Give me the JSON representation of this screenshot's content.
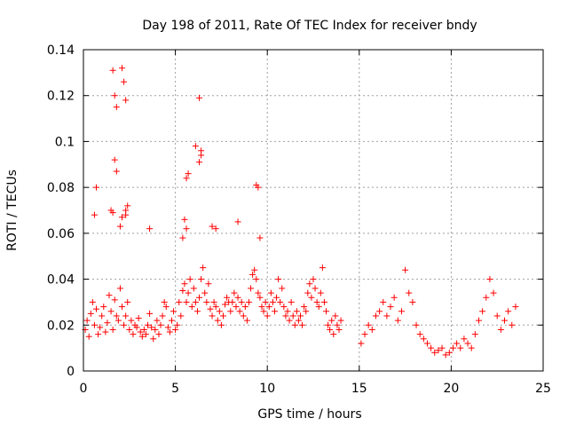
{
  "chart_data": {
    "type": "scatter",
    "title": "Day 198 of 2011, Rate Of TEC Index for receiver bndy",
    "xlabel": "GPS time / hours",
    "ylabel": "ROTI / TECUs",
    "xlim": [
      0,
      25
    ],
    "ylim": [
      0,
      0.14
    ],
    "x_ticks": [
      "0",
      "5",
      "10",
      "15",
      "20",
      "25"
    ],
    "y_ticks": [
      "0",
      "0.02",
      "0.04",
      "0.06",
      "0.08",
      "0.1",
      "0.12",
      "0.14"
    ],
    "x_tick_values": [
      0,
      5,
      10,
      15,
      20,
      25
    ],
    "y_tick_values": [
      0,
      0.02,
      0.04,
      0.06,
      0.08,
      0.1,
      0.12,
      0.14
    ],
    "grid": true,
    "marker": "plus",
    "color": "#ff0000",
    "series": [
      {
        "x": [
          0.1,
          0.2,
          0.3,
          0.4,
          0.5,
          0.6,
          0.7,
          0.8,
          0.9,
          1.0,
          1.1,
          1.2,
          1.3,
          1.4,
          1.5,
          1.6,
          1.7,
          1.8,
          1.9,
          2.0,
          2.1,
          2.2,
          2.3,
          2.4,
          2.5,
          2.6,
          2.7,
          2.8,
          2.9,
          3.0,
          3.1,
          3.2,
          3.3,
          3.4,
          3.5,
          3.6,
          3.7,
          3.8,
          3.9,
          4.0,
          4.1,
          4.2,
          4.3,
          4.4,
          4.5,
          4.6,
          4.7,
          4.8,
          4.9,
          5.0,
          5.1,
          5.2,
          5.3,
          5.4,
          5.5,
          5.6,
          5.7,
          5.8,
          5.9,
          6.0,
          6.1,
          6.2,
          6.3,
          6.4,
          6.5,
          6.6,
          6.7,
          6.8,
          6.9,
          7.0,
          7.1,
          7.2,
          7.3,
          7.4,
          7.5,
          7.6,
          7.7,
          7.8,
          7.9,
          8.0,
          8.1,
          8.2,
          8.3,
          8.4,
          8.5,
          8.6,
          8.7,
          8.8,
          8.9,
          9.0,
          9.1,
          9.2,
          9.3,
          9.4,
          9.5,
          9.6,
          9.7,
          9.8,
          9.9,
          10.0,
          10.1,
          10.2,
          10.3,
          10.4,
          10.5,
          10.6,
          10.7,
          10.8,
          10.9,
          11.0,
          11.1,
          11.2,
          11.3,
          11.4,
          11.5,
          11.6,
          11.7,
          11.8,
          11.9,
          12.0,
          12.1,
          12.2,
          12.3,
          12.4,
          12.5,
          12.6,
          12.7,
          12.8,
          12.9,
          13.0,
          13.1,
          13.2,
          13.3,
          13.4,
          13.5,
          13.6,
          13.7,
          13.8,
          13.9,
          14.0,
          15.1,
          15.3,
          15.5,
          15.7,
          15.9,
          16.1,
          16.3,
          16.5,
          16.7,
          16.9,
          17.1,
          17.3,
          17.5,
          17.7,
          17.9,
          18.1,
          18.3,
          18.5,
          18.7,
          18.9,
          19.1,
          19.3,
          19.5,
          19.7,
          19.9,
          20.1,
          20.3,
          20.5,
          20.7,
          20.9,
          21.1,
          21.3,
          21.5,
          21.7,
          21.9,
          22.1,
          22.3,
          22.5,
          22.7,
          22.9,
          23.1,
          23.3,
          23.5,
          1.6,
          1.7,
          1.8,
          2.1,
          2.2,
          2.3,
          6.3,
          6.4,
          1.7,
          1.8,
          2.3,
          2.4,
          0.6,
          0.7,
          5.6,
          5.7,
          6.1,
          6.3,
          6.4,
          9.4,
          9.5,
          1.5,
          1.6,
          2.0,
          2.1,
          2.3,
          3.6,
          5.4,
          5.5,
          5.6,
          7.0,
          7.2,
          8.4,
          9.6
        ],
        "y": [
          0.018,
          0.022,
          0.015,
          0.025,
          0.03,
          0.02,
          0.027,
          0.016,
          0.019,
          0.024,
          0.028,
          0.017,
          0.021,
          0.033,
          0.026,
          0.018,
          0.031,
          0.024,
          0.022,
          0.036,
          0.028,
          0.02,
          0.024,
          0.03,
          0.018,
          0.022,
          0.016,
          0.02,
          0.019,
          0.023,
          0.017,
          0.015,
          0.018,
          0.016,
          0.02,
          0.025,
          0.019,
          0.014,
          0.018,
          0.022,
          0.016,
          0.02,
          0.024,
          0.03,
          0.028,
          0.019,
          0.017,
          0.022,
          0.026,
          0.018,
          0.02,
          0.03,
          0.024,
          0.035,
          0.038,
          0.03,
          0.034,
          0.04,
          0.028,
          0.036,
          0.03,
          0.026,
          0.032,
          0.04,
          0.045,
          0.034,
          0.03,
          0.038,
          0.027,
          0.024,
          0.03,
          0.028,
          0.022,
          0.026,
          0.02,
          0.024,
          0.029,
          0.032,
          0.03,
          0.026,
          0.03,
          0.034,
          0.028,
          0.032,
          0.026,
          0.03,
          0.024,
          0.028,
          0.022,
          0.03,
          0.036,
          0.042,
          0.044,
          0.04,
          0.034,
          0.032,
          0.028,
          0.026,
          0.03,
          0.024,
          0.028,
          0.034,
          0.03,
          0.026,
          0.032,
          0.04,
          0.03,
          0.036,
          0.028,
          0.024,
          0.026,
          0.022,
          0.03,
          0.024,
          0.02,
          0.026,
          0.022,
          0.024,
          0.02,
          0.028,
          0.026,
          0.034,
          0.038,
          0.032,
          0.04,
          0.036,
          0.03,
          0.028,
          0.034,
          0.045,
          0.03,
          0.026,
          0.02,
          0.018,
          0.022,
          0.016,
          0.024,
          0.02,
          0.018,
          0.022,
          0.012,
          0.016,
          0.02,
          0.018,
          0.024,
          0.026,
          0.03,
          0.024,
          0.028,
          0.032,
          0.022,
          0.026,
          0.044,
          0.034,
          0.03,
          0.02,
          0.016,
          0.014,
          0.012,
          0.01,
          0.008,
          0.009,
          0.01,
          0.007,
          0.008,
          0.01,
          0.012,
          0.01,
          0.014,
          0.012,
          0.01,
          0.016,
          0.022,
          0.026,
          0.032,
          0.04,
          0.034,
          0.024,
          0.018,
          0.022,
          0.026,
          0.02,
          0.028,
          0.131,
          0.12,
          0.115,
          0.132,
          0.126,
          0.118,
          0.119,
          0.096,
          0.092,
          0.087,
          0.07,
          0.072,
          0.068,
          0.08,
          0.084,
          0.086,
          0.098,
          0.091,
          0.094,
          0.081,
          0.08,
          0.07,
          0.069,
          0.063,
          0.067,
          0.068,
          0.062,
          0.058,
          0.066,
          0.062,
          0.063,
          0.062,
          0.065,
          0.058
        ]
      }
    ]
  }
}
